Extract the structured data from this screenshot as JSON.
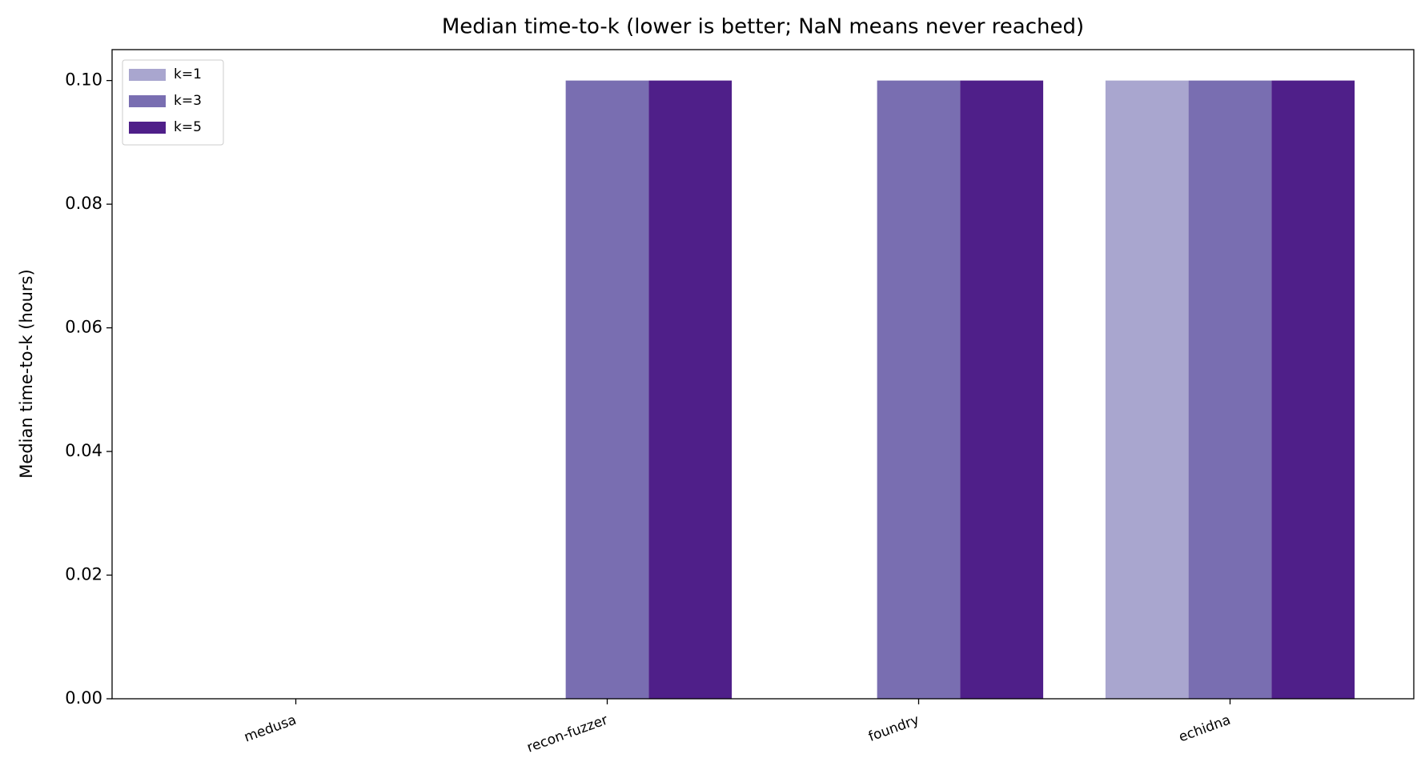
{
  "chart_data": {
    "type": "bar",
    "title": "Median time-to-k (lower is better; NaN means never reached)",
    "y_label": "Median time-to-k (hours)",
    "categories": [
      "medusa",
      "recon-fuzzer",
      "foundry",
      "echidna"
    ],
    "series": [
      {
        "name": "k=1",
        "color": "#a9a6cf",
        "values": [
          null,
          null,
          null,
          0.1
        ]
      },
      {
        "name": "k=3",
        "color": "#796eb1",
        "values": [
          null,
          0.1,
          0.1,
          0.1
        ]
      },
      {
        "name": "k=5",
        "color": "#4f1f89",
        "values": [
          null,
          0.1,
          0.1,
          0.1
        ]
      }
    ],
    "ylim": [
      0,
      0.105
    ],
    "yticks": [
      {
        "value": 0,
        "label": "0.00"
      },
      {
        "value": 0.02,
        "label": "0.02"
      },
      {
        "value": 0.04,
        "label": "0.04"
      },
      {
        "value": 0.06,
        "label": "0.06"
      },
      {
        "value": 0.08,
        "label": "0.08"
      },
      {
        "value": 0.1,
        "label": "0.10"
      }
    ],
    "legend": "upper left"
  }
}
